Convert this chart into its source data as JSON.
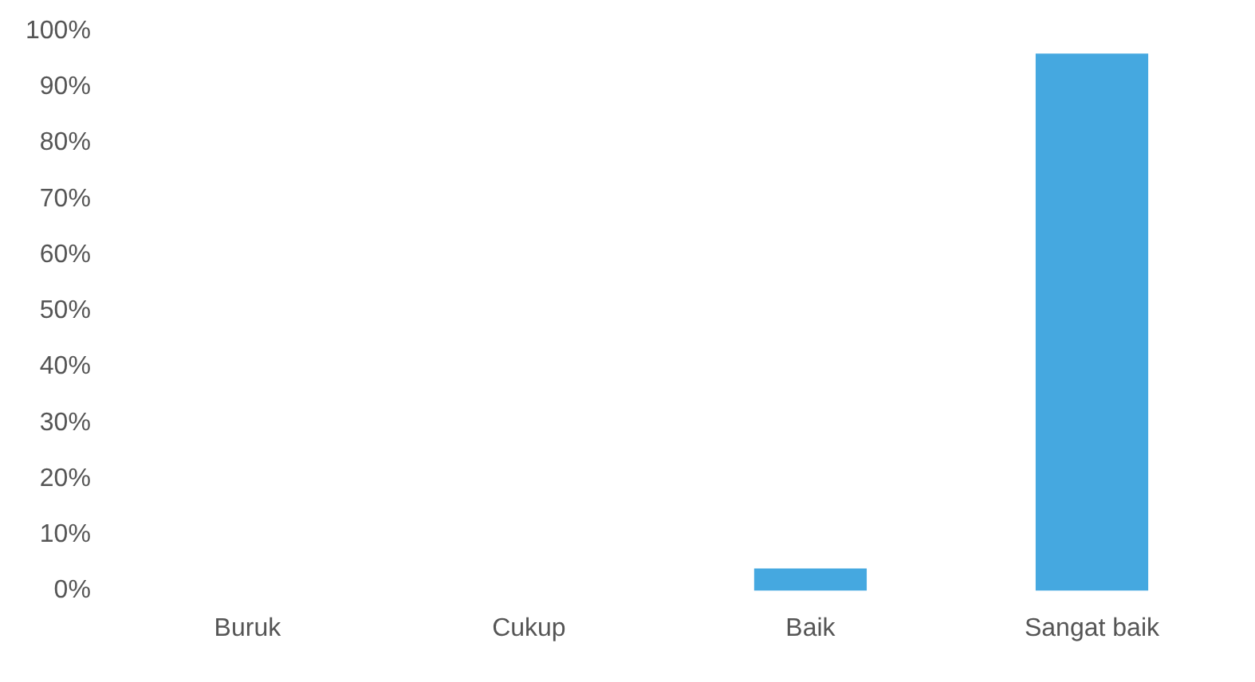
{
  "chart_data": {
    "type": "bar",
    "categories": [
      "Buruk",
      "Cukup",
      "Baik",
      "Sangat baik"
    ],
    "values": [
      0,
      0,
      4,
      96
    ],
    "color": "#45a8e0",
    "ylim": [
      0,
      100
    ],
    "yticks": [
      {
        "value": 0,
        "label": "0%"
      },
      {
        "value": 10,
        "label": "10%"
      },
      {
        "value": 20,
        "label": "20%"
      },
      {
        "value": 30,
        "label": "30%"
      },
      {
        "value": 40,
        "label": "40%"
      },
      {
        "value": 50,
        "label": "50%"
      },
      {
        "value": 60,
        "label": "60%"
      },
      {
        "value": 70,
        "label": "70%"
      },
      {
        "value": 80,
        "label": "80%"
      },
      {
        "value": 90,
        "label": "90%"
      },
      {
        "value": 100,
        "label": "100%"
      }
    ],
    "grid": false
  }
}
